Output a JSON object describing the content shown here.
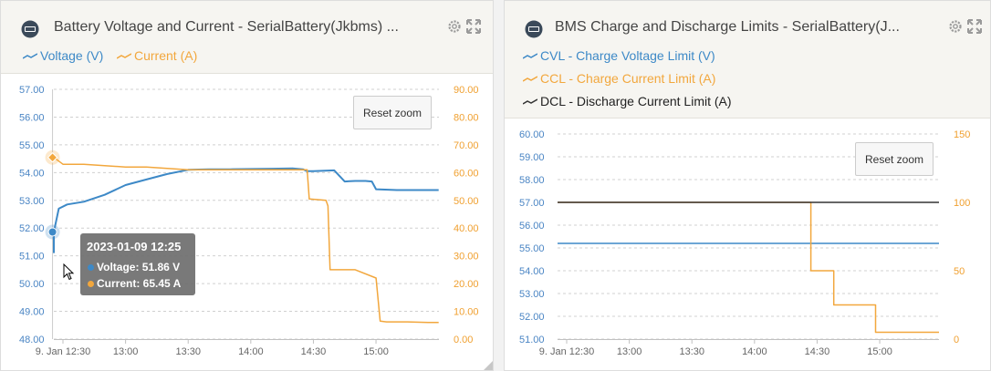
{
  "colors": {
    "voltage": "#3d89c7",
    "current": "#f2a73d",
    "dcl": "#333333",
    "grid": "#d0d0d0",
    "axis_text": "#4a85c4",
    "axis_text_right": "#f0a030",
    "axis_text_x": "#666666"
  },
  "left_panel": {
    "title": "Battery Voltage and Current - SerialBattery(Jkbms) ...",
    "title_icon": "battery-device-icon",
    "legend": [
      {
        "label": "Voltage (V)",
        "color": "#3d89c7"
      },
      {
        "label": "Current (A)",
        "color": "#f2a73d"
      }
    ],
    "reset_zoom_label": "Reset zoom",
    "tooltip": {
      "date": "2023-01-09 12:25",
      "rows": [
        {
          "label": "Voltage: 51.86 V",
          "color": "#3d89c7"
        },
        {
          "label": "Current: 65.45 A",
          "color": "#f2a73d"
        }
      ]
    }
  },
  "right_panel": {
    "title": "BMS Charge and Discharge Limits - SerialBattery(J...",
    "title_icon": "battery-device-icon",
    "legend": [
      {
        "label": "CVL - Charge Voltage Limit (V)",
        "color": "#3d89c7"
      },
      {
        "label": "CCL - Charge Current Limit (A)",
        "color": "#f2a73d"
      },
      {
        "label": "DCL - Discharge Current Limit (A)",
        "color": "#333333"
      }
    ],
    "reset_zoom_label": "Reset zoom"
  },
  "chart_data": [
    {
      "type": "line",
      "title": "Battery Voltage and Current - SerialBattery(Jkbms) ...",
      "x_tick_labels": [
        "9. Jan 12:30",
        "13:00",
        "13:30",
        "14:00",
        "14:30",
        "15:00"
      ],
      "x_range_minutes": [
        12.42,
        15.35
      ],
      "yleft_ticks": [
        "48.00",
        "49.00",
        "50.00",
        "51.00",
        "52.00",
        "53.00",
        "54.00",
        "55.00",
        "56.00",
        "57.00"
      ],
      "yleft_range": [
        48,
        57
      ],
      "yright_ticks": [
        "0.00",
        "10.00",
        "20.00",
        "30.00",
        "40.00",
        "50.00",
        "60.00",
        "70.00",
        "80.00",
        "90.00"
      ],
      "yright_range": [
        0,
        90
      ],
      "grid": true,
      "crosshair_x": "12:25",
      "series": [
        {
          "name": "Voltage (V)",
          "axis": "left",
          "color": "#3d89c7",
          "x": [
            "12:22",
            "12:25",
            "12:28",
            "12:32",
            "12:40",
            "12:50",
            "13:00",
            "13:10",
            "13:20",
            "13:30",
            "13:40",
            "13:50",
            "14:00",
            "14:10",
            "14:20",
            "14:25",
            "14:27",
            "14:30",
            "14:40",
            "14:45",
            "14:50",
            "14:55",
            "14:58",
            "15:00",
            "15:10",
            "15:20",
            "15:30"
          ],
          "y": [
            51.1,
            51.86,
            52.7,
            52.85,
            52.95,
            53.2,
            53.55,
            53.75,
            53.95,
            54.1,
            54.12,
            54.12,
            54.13,
            54.14,
            54.15,
            54.12,
            54.05,
            54.05,
            54.08,
            53.68,
            53.7,
            53.7,
            53.68,
            53.4,
            53.37,
            53.37,
            53.37
          ]
        },
        {
          "name": "Current (A)",
          "axis": "right",
          "color": "#f2a73d",
          "x": [
            "12:25",
            "12:30",
            "12:40",
            "12:50",
            "13:00",
            "13:10",
            "13:20",
            "13:30",
            "13:40",
            "13:50",
            "14:00",
            "14:10",
            "14:20",
            "14:27",
            "14:28",
            "14:36",
            "14:37",
            "14:38",
            "14:50",
            "15:00",
            "15:02",
            "15:05",
            "15:15",
            "15:25",
            "15:30"
          ],
          "y": [
            65.45,
            63.0,
            63.0,
            62.5,
            62.0,
            62.0,
            61.5,
            61.0,
            61.0,
            61.0,
            61.0,
            61.0,
            61.0,
            61.0,
            50.5,
            50.0,
            48.0,
            25.0,
            25.0,
            22.0,
            6.5,
            6.2,
            6.2,
            6.0,
            6.0
          ]
        }
      ]
    },
    {
      "type": "line",
      "title": "BMS Charge and Discharge Limits - SerialBattery(J...",
      "x_tick_labels": [
        "9. Jan 12:30",
        "13:00",
        "13:30",
        "14:00",
        "14:30",
        "15:00"
      ],
      "yleft_ticks": [
        "51.00",
        "52.00",
        "53.00",
        "54.00",
        "55.00",
        "56.00",
        "57.00",
        "58.00",
        "59.00",
        "60.00"
      ],
      "yleft_range": [
        51,
        60
      ],
      "yright_ticks": [
        "0",
        "50",
        "100",
        "150"
      ],
      "yright_range": [
        0,
        150
      ],
      "grid": true,
      "series": [
        {
          "name": "CVL - Charge Voltage Limit (V)",
          "axis": "left",
          "color": "#3d89c7",
          "x": [
            "12:22",
            "15:30"
          ],
          "y": [
            55.2,
            55.2
          ]
        },
        {
          "name": "CCL - Charge Current Limit (A)",
          "axis": "right",
          "color": "#f2a73d",
          "x": [
            "12:22",
            "14:27",
            "14:27",
            "14:38",
            "14:38",
            "14:58",
            "14:58",
            "15:30"
          ],
          "y": [
            100,
            100,
            50,
            50,
            25,
            25,
            5,
            5
          ]
        },
        {
          "name": "DCL - Discharge Current Limit (A)",
          "axis": "right",
          "color": "#333333",
          "x": [
            "12:22",
            "15:30"
          ],
          "y": [
            100,
            100
          ]
        }
      ]
    }
  ]
}
